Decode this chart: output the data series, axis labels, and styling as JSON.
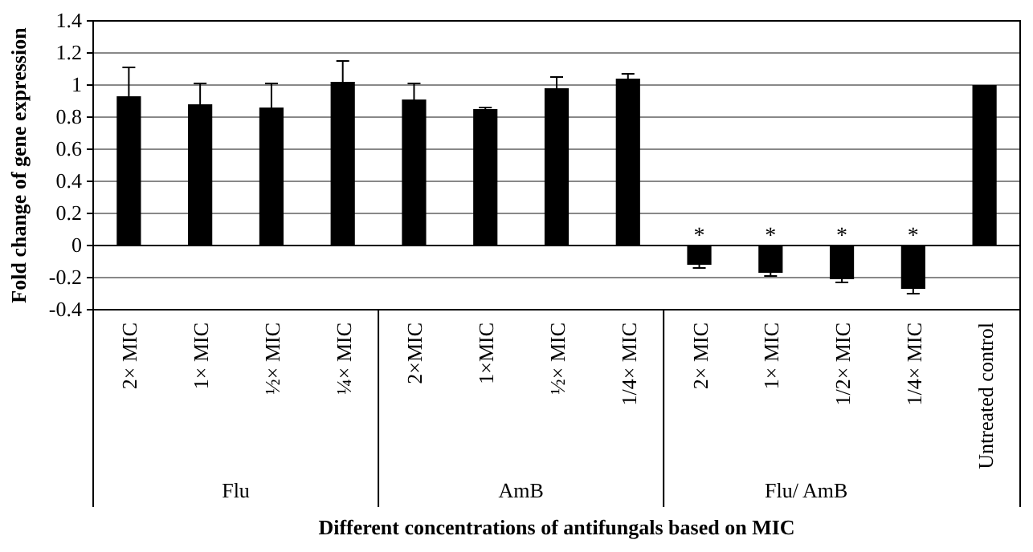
{
  "chart_data": {
    "type": "bar",
    "categories": [
      "2× MIC",
      "1× MIC",
      "½× MIC",
      "¼× MIC",
      "2×MIC",
      "1×MIC",
      "½× MIC",
      "1/4× MIC",
      "2× MIC",
      "1× MIC",
      "1/2× MIC",
      "1/4× MIC",
      "Untreated control"
    ],
    "values": [
      0.93,
      0.88,
      0.86,
      1.02,
      0.91,
      0.85,
      0.98,
      1.04,
      -0.12,
      -0.17,
      -0.21,
      -0.27,
      1.0
    ],
    "errors": [
      0.18,
      0.13,
      0.15,
      0.13,
      0.1,
      0.01,
      0.07,
      0.03,
      0.02,
      0.02,
      0.02,
      0.03,
      null
    ],
    "value_labels": [
      null,
      null,
      null,
      null,
      null,
      null,
      null,
      null,
      "*",
      "*",
      "*",
      "*",
      null
    ],
    "color": "#000000",
    "xlabel": "Different concentrations of antifungals based on MIC",
    "ylabel": "Fold change of gene expression",
    "annotations": [
      "Flu",
      "AmB",
      "Flu/ AmB"
    ],
    "ylim": [
      -0.4,
      1.4
    ],
    "yticks": [
      -0.4,
      -0.2,
      0,
      0.2,
      0.4,
      0.6,
      0.8,
      1,
      1.2,
      1.4
    ],
    "grid": "y"
  }
}
